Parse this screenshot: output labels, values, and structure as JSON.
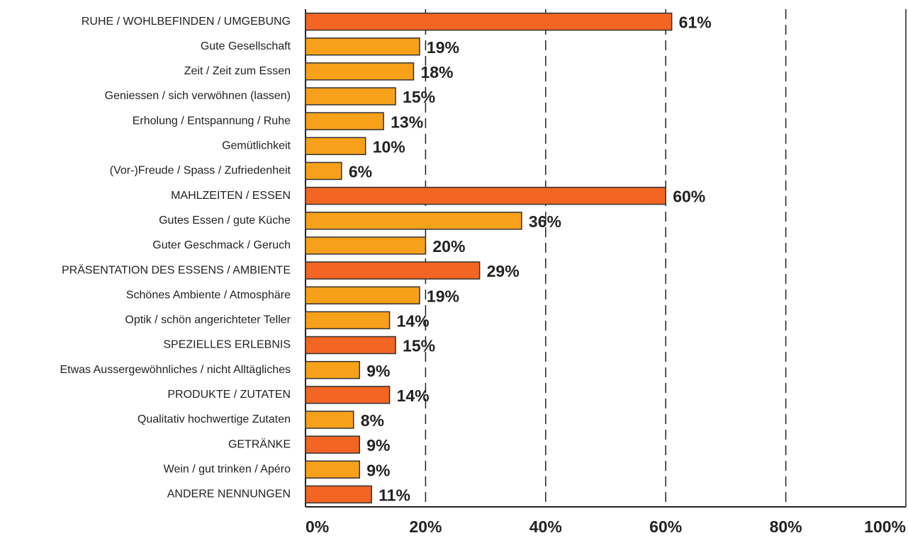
{
  "chart_data": {
    "type": "barh",
    "categories": [
      "RUHE / WOHLBEFINDEN / UMGEBUNG",
      "Gute Gesellschaft",
      "Zeit / Zeit zum Essen",
      "Geniessen / sich verwöhnen (lassen)",
      "Erholung / Entspannung / Ruhe",
      "Gemütlichkeit",
      "(Vor-)Freude / Spass / Zufriedenheit",
      "MAHLZEITEN / ESSEN",
      "Gutes Essen / gute Küche",
      "Guter Geschmack / Geruch",
      "PRÄSENTATION DES ESSENS / AMBIENTE",
      "Schönes Ambiente / Atmosphäre",
      "Optik / schön angerichteter Teller",
      "SPEZIELLES ERLEBNIS",
      "Etwas Aussergewöhnliches / nicht Alltägliches",
      "PRODUKTE / ZUTATEN",
      "Qualitativ hochwertige Zutaten",
      "GETRÄNKE",
      "Wein / gut trinken / Apéro",
      "ANDERE NENNUNGEN"
    ],
    "values": [
      61,
      19,
      18,
      15,
      13,
      10,
      6,
      60,
      36,
      20,
      29,
      19,
      14,
      15,
      9,
      14,
      8,
      9,
      9,
      11
    ],
    "value_labels": [
      "61%",
      "19%",
      "18%",
      "15%",
      "13%",
      "10%",
      "6%",
      "60%",
      "36%",
      "20%",
      "29%",
      "19%",
      "14%",
      "15%",
      "9%",
      "14%",
      "8%",
      "9%",
      "9%",
      "11%"
    ],
    "colors": [
      "#f26522",
      "#f7a11a",
      "#f7a11a",
      "#f7a11a",
      "#f7a11a",
      "#f7a11a",
      "#f7a11a",
      "#f26522",
      "#f7a11a",
      "#f7a11a",
      "#f26522",
      "#f7a11a",
      "#f7a11a",
      "#f26522",
      "#f7a11a",
      "#f26522",
      "#f7a11a",
      "#f26522",
      "#f7a11a",
      "#f26522"
    ],
    "xlim": [
      0,
      100
    ],
    "xticks": [
      {
        "value": 0,
        "label": "0%"
      },
      {
        "value": 20,
        "label": "20%"
      },
      {
        "value": 40,
        "label": "40%"
      },
      {
        "value": 60,
        "label": "60%"
      },
      {
        "value": 80,
        "label": "80%"
      },
      {
        "value": 100,
        "label": "100%"
      }
    ],
    "grid": true
  }
}
